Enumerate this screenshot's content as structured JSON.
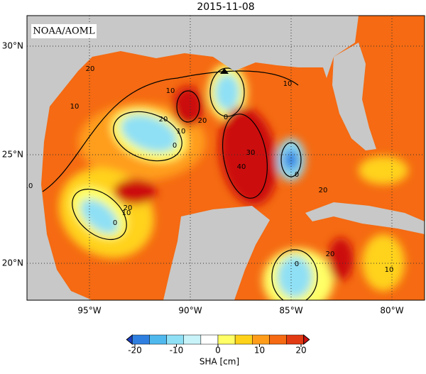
{
  "title": "2015-11-08",
  "credit": "NOAA/AOML",
  "map": {
    "lat_labels": [
      {
        "value": 30,
        "label": "30°N"
      },
      {
        "value": 25,
        "label": "25°N"
      },
      {
        "value": 20,
        "label": "20°N"
      }
    ],
    "lon_labels": [
      {
        "value": -95,
        "label": "95°W"
      },
      {
        "value": -90,
        "label": "90°W"
      },
      {
        "value": -85,
        "label": "85°W"
      },
      {
        "value": -80,
        "label": "80°W"
      }
    ],
    "contour_labels": [
      20,
      10,
      10,
      20,
      0,
      10,
      0,
      0,
      10,
      20,
      30,
      40,
      0,
      20,
      10,
      20,
      20,
      10,
      10,
      0
    ]
  },
  "colorbar": {
    "label": "SHA [cm]",
    "range": [
      -22,
      22
    ],
    "ticks": [
      -20,
      -10,
      0,
      10,
      20
    ],
    "colors": [
      "#1b3fbf",
      "#2f7fe0",
      "#4fb9ee",
      "#8fe0f5",
      "#c8f3f8",
      "#ffffff",
      "#ffff66",
      "#ffd21a",
      "#ff9d1a",
      "#f56a12",
      "#e23a12",
      "#cc1010"
    ]
  }
}
